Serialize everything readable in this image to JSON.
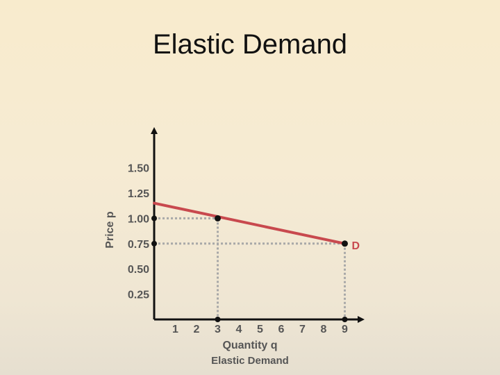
{
  "slide": {
    "title": "Elastic Demand"
  },
  "chart_data": {
    "type": "line",
    "title": "Elastic Demand",
    "xlabel": "Quantity q",
    "ylabel": "Price p",
    "x_ticks": [
      "1",
      "2",
      "3",
      "4",
      "5",
      "6",
      "7",
      "8",
      "9"
    ],
    "y_ticks": [
      "0.25",
      "0.50",
      "0.75",
      "1.00",
      "1.25",
      "1.50"
    ],
    "xlim": [
      0,
      9.5
    ],
    "ylim": [
      0,
      1.85
    ],
    "grid": false,
    "series": [
      {
        "name": "D",
        "line": {
          "x": [
            0,
            9
          ],
          "y": [
            1.15,
            0.75
          ]
        },
        "points": [
          {
            "x": 3,
            "y": 1.0
          },
          {
            "x": 9,
            "y": 0.75
          }
        ]
      }
    ],
    "reference_lines": [
      {
        "from": [
          0,
          1.0
        ],
        "to": [
          3,
          1.0
        ]
      },
      {
        "from": [
          3,
          1.0
        ],
        "to": [
          3,
          0
        ]
      },
      {
        "from": [
          0,
          0.75
        ],
        "to": [
          9,
          0.75
        ]
      },
      {
        "from": [
          9,
          0.75
        ],
        "to": [
          9,
          0
        ]
      }
    ],
    "axis_markers": [
      {
        "axis": "y",
        "value": 1.0
      },
      {
        "axis": "y",
        "value": 0.75
      },
      {
        "axis": "x",
        "value": 3
      },
      {
        "axis": "x",
        "value": 9
      }
    ],
    "colors": {
      "demand_line": "#c8494e",
      "demand_label": "#c8494e",
      "axes": "#111111",
      "reference": "#a8a8a8",
      "text": "#555555"
    }
  }
}
